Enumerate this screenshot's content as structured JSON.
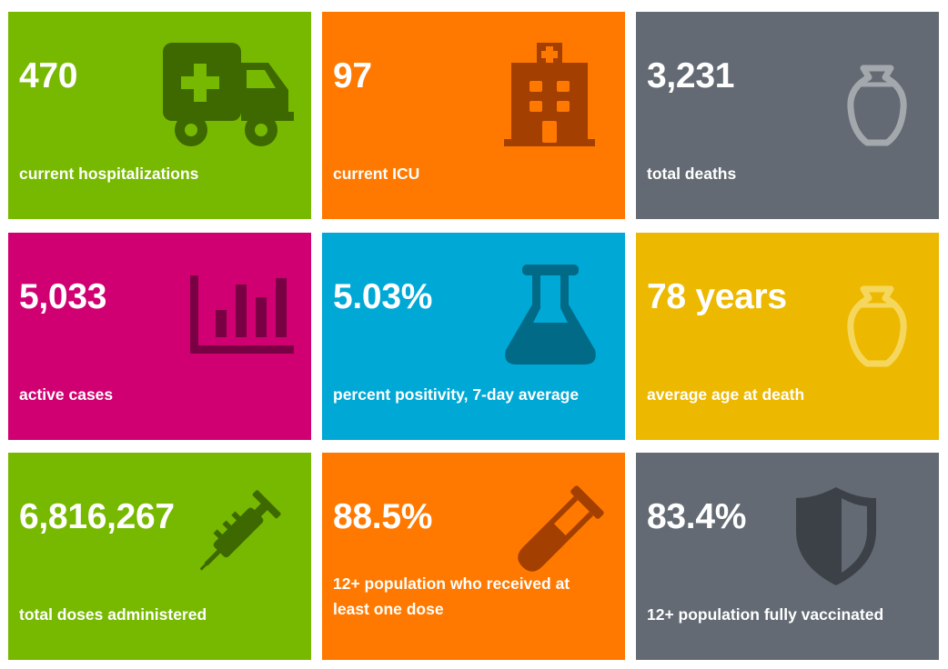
{
  "tiles": [
    {
      "value": "470",
      "label": "current hospitalizations",
      "color": "#77B900",
      "icon": "ambulance-icon"
    },
    {
      "value": "97",
      "label": "current ICU",
      "color": "#FF7900",
      "icon": "hospital-building-icon"
    },
    {
      "value": "3,231",
      "label": "total deaths",
      "color": "#636A73",
      "icon": "urn-icon"
    },
    {
      "value": "5,033",
      "label": "active cases",
      "color": "#D10072",
      "icon": "bar-chart-icon"
    },
    {
      "value": "5.03%",
      "label": "percent positivity, 7-day average",
      "color": "#00A8D6",
      "icon": "lab-flask-icon"
    },
    {
      "value": "78 years",
      "label": "average age at death",
      "color": "#EDB800",
      "icon": "urn-icon"
    },
    {
      "value": "6,816,267",
      "label": "total doses administered",
      "color": "#77B900",
      "icon": "syringe-icon"
    },
    {
      "value": "88.5%",
      "label": "12+ population who received at least one dose",
      "color": "#FF7900",
      "icon": "test-tube-icon"
    },
    {
      "value": "83.4%",
      "label": "12+ population fully vaccinated",
      "color": "#636A73",
      "icon": "shield-icon"
    }
  ]
}
